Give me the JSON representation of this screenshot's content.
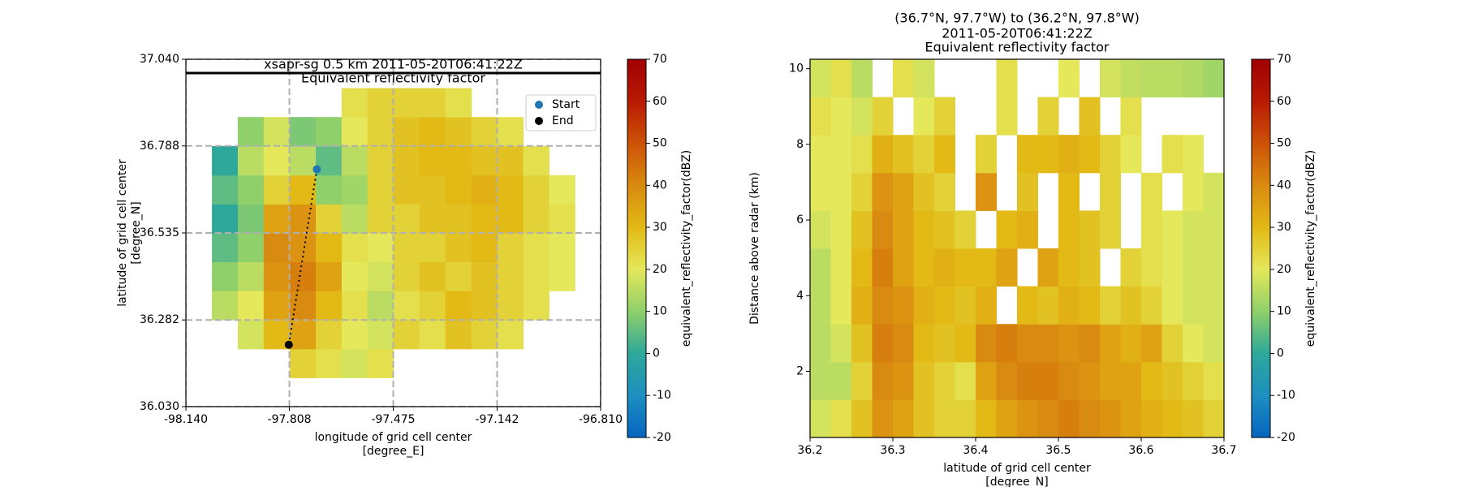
{
  "chart_data": [
    {
      "type": "heatmap",
      "title": [
        "xsapr-sg 0.5 km 2011-05-20T06:41:22Z",
        "Equivalent reflectivity factor"
      ],
      "xlabel": [
        "longitude of grid cell center",
        "[degree_E]"
      ],
      "ylabel": [
        "latitude of grid cell center",
        "[degree_N]"
      ],
      "xlim": [
        -98.14,
        -96.81
      ],
      "xticks": [
        {
          "value": -98.14,
          "label": "-98.140"
        },
        {
          "value": -97.808,
          "label": "-97.808"
        },
        {
          "value": -97.475,
          "label": "-97.475"
        },
        {
          "value": -97.142,
          "label": "-97.142"
        },
        {
          "value": -96.81,
          "label": "-96.810"
        }
      ],
      "ylim": [
        36.03,
        37.04
      ],
      "yticks": [
        {
          "value": 36.03,
          "label": "36.030"
        },
        36.282,
        36.535,
        36.788,
        {
          "value": 37.04,
          "label": "37.040"
        }
      ],
      "grid": true,
      "x": [
        -98.098,
        -98.015,
        -97.932,
        -97.849,
        -97.765,
        -97.682,
        -97.599,
        -97.516,
        -97.433,
        -97.35,
        -97.266,
        -97.183,
        -97.1,
        -97.017,
        -96.934,
        -96.851
      ],
      "y": [
        36.072,
        36.156,
        36.24,
        36.325,
        36.409,
        36.493,
        36.577,
        36.661,
        36.745,
        36.83,
        36.914,
        36.998
      ],
      "values": [
        [
          null,
          null,
          null,
          null,
          null,
          null,
          null,
          null,
          null,
          null,
          null,
          null,
          null,
          null,
          null,
          null
        ],
        [
          null,
          null,
          null,
          null,
          25,
          22,
          18,
          22,
          null,
          null,
          null,
          null,
          null,
          null,
          null,
          null
        ],
        [
          null,
          null,
          18,
          30,
          35,
          25,
          20,
          18,
          25,
          22,
          28,
          25,
          22,
          null,
          null,
          null
        ],
        [
          null,
          15,
          20,
          35,
          40,
          30,
          22,
          15,
          22,
          25,
          30,
          28,
          25,
          22,
          null,
          null
        ],
        [
          null,
          10,
          15,
          38,
          42,
          35,
          20,
          18,
          25,
          28,
          25,
          28,
          25,
          22,
          20,
          null
        ],
        [
          null,
          5,
          10,
          40,
          38,
          30,
          22,
          20,
          25,
          25,
          28,
          30,
          25,
          22,
          20,
          null
        ],
        [
          null,
          0,
          8,
          35,
          38,
          25,
          15,
          25,
          25,
          28,
          28,
          30,
          30,
          25,
          22,
          null
        ],
        [
          null,
          5,
          10,
          25,
          30,
          10,
          12,
          25,
          28,
          28,
          30,
          32,
          30,
          25,
          20,
          null
        ],
        [
          null,
          0,
          15,
          20,
          15,
          5,
          15,
          25,
          28,
          30,
          30,
          28,
          28,
          22,
          null,
          null
        ],
        [
          null,
          null,
          10,
          18,
          8,
          10,
          20,
          25,
          28,
          30,
          28,
          25,
          22,
          null,
          null,
          null
        ],
        [
          null,
          null,
          null,
          null,
          null,
          null,
          22,
          25,
          25,
          25,
          22,
          null,
          null,
          null,
          null,
          null
        ],
        [
          null,
          null,
          null,
          null,
          null,
          null,
          null,
          null,
          null,
          null,
          null,
          null,
          null,
          null,
          null,
          null
        ]
      ],
      "points": [
        {
          "name": "Start",
          "x": -97.72,
          "y": 36.72,
          "color": "#1f77b4"
        },
        {
          "name": "End",
          "x": -97.81,
          "y": 36.21,
          "color": "#000000"
        }
      ],
      "legend": "upper right",
      "hlines": [
        37.0
      ],
      "colorbar": {
        "label": "equivalent_reflectivity_factor(dBZ)",
        "lim": [
          -20,
          70
        ],
        "ticks": [
          -20,
          -10,
          0,
          10,
          20,
          30,
          40,
          50,
          60,
          70
        ]
      },
      "colormap": [
        "#0565c0",
        "#1d8fc0",
        "#2ea89a",
        "#8fd06a",
        "#e4e85a",
        "#e2b915",
        "#d98a10",
        "#cc5206",
        "#b81a03",
        "#a00000"
      ]
    },
    {
      "type": "heatmap",
      "title": [
        "(36.7°N, 97.7°W) to (36.2°N, 97.8°W)",
        "2011-05-20T06:41:22Z",
        "Equivalent reflectivity factor"
      ],
      "xlabel": [
        "latitude of grid cell center",
        "[degree_N]"
      ],
      "ylabel": [
        "Distance above radar (km)"
      ],
      "xlim": [
        36.2,
        36.7
      ],
      "xticks": [
        36.2,
        36.3,
        36.4,
        36.5,
        36.6,
        36.7
      ],
      "ylim": [
        0.25,
        10.25
      ],
      "yticks": [
        2,
        4,
        6,
        8,
        10
      ],
      "grid": false,
      "x": [
        36.2125,
        36.2375,
        36.2625,
        36.2875,
        36.3125,
        36.3375,
        36.3625,
        36.3875,
        36.4125,
        36.4375,
        36.4625,
        36.4875,
        36.5125,
        36.5375,
        36.5625,
        36.5875,
        36.6125,
        36.6375,
        36.6625,
        36.6875
      ],
      "y": [
        0.75,
        1.75,
        2.75,
        3.75,
        4.75,
        5.75,
        6.75,
        7.75,
        8.75,
        9.75
      ],
      "values": [
        [
          18,
          22,
          28,
          38,
          35,
          28,
          25,
          25,
          30,
          35,
          38,
          40,
          42,
          40,
          38,
          35,
          32,
          30,
          28,
          25
        ],
        [
          15,
          15,
          25,
          40,
          38,
          28,
          25,
          22,
          35,
          40,
          42,
          42,
          40,
          38,
          35,
          35,
          30,
          28,
          25,
          22
        ],
        [
          15,
          18,
          28,
          42,
          40,
          30,
          28,
          30,
          40,
          42,
          40,
          40,
          38,
          40,
          35,
          32,
          35,
          25,
          20,
          18
        ],
        [
          15,
          20,
          32,
          40,
          38,
          32,
          30,
          28,
          32,
          null,
          30,
          28,
          32,
          30,
          25,
          28,
          25,
          20,
          18,
          18
        ],
        [
          15,
          20,
          30,
          42,
          35,
          30,
          32,
          30,
          30,
          35,
          null,
          35,
          30,
          28,
          null,
          25,
          22,
          20,
          18,
          18
        ],
        [
          18,
          20,
          28,
          40,
          35,
          30,
          28,
          25,
          null,
          30,
          32,
          null,
          30,
          28,
          25,
          null,
          22,
          20,
          18,
          18
        ],
        [
          20,
          20,
          25,
          38,
          35,
          28,
          25,
          null,
          38,
          null,
          28,
          null,
          30,
          null,
          25,
          null,
          22,
          null,
          20,
          18
        ],
        [
          20,
          20,
          22,
          32,
          28,
          25,
          30,
          null,
          25,
          null,
          30,
          30,
          32,
          30,
          25,
          20,
          null,
          22,
          20,
          null
        ],
        [
          22,
          20,
          18,
          25,
          null,
          20,
          25,
          null,
          null,
          22,
          null,
          25,
          null,
          28,
          null,
          22,
          null,
          null,
          null,
          null
        ],
        [
          18,
          22,
          15,
          null,
          22,
          18,
          null,
          null,
          null,
          22,
          null,
          null,
          20,
          null,
          18,
          16,
          15,
          15,
          14,
          12
        ]
      ],
      "colorbar": {
        "label": "equivalent_reflectivity_factor(dBZ)",
        "lim": [
          -20,
          70
        ],
        "ticks": [
          -20,
          -10,
          0,
          10,
          20,
          30,
          40,
          50,
          60,
          70
        ]
      },
      "colormap": [
        "#0565c0",
        "#1d8fc0",
        "#2ea89a",
        "#8fd06a",
        "#e4e85a",
        "#e2b915",
        "#d98a10",
        "#cc5206",
        "#b81a03",
        "#a00000"
      ]
    }
  ]
}
